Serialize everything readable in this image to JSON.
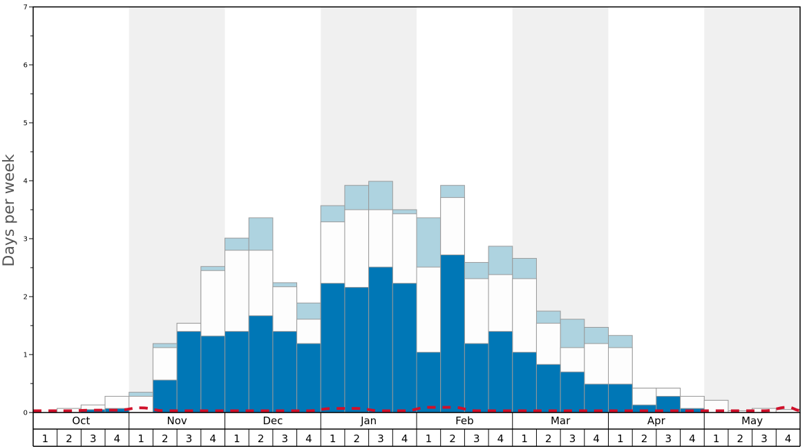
{
  "chart_data": {
    "type": "bar",
    "ylabel": "Days per week",
    "ylim": [
      0,
      7
    ],
    "yticks": [
      "0",
      "1",
      "2",
      "3",
      "4",
      "5",
      "6",
      "7"
    ],
    "months": [
      "Oct",
      "Nov",
      "Dec",
      "Jan",
      "Feb",
      "Mar",
      "Apr",
      "May"
    ],
    "weeks_per_month": [
      "1",
      "2",
      "3",
      "4"
    ],
    "colors": {
      "dark": "#0077b6",
      "white": "#fdfdfd",
      "light": "#aed3e0",
      "line": "#d0102a",
      "shade": "#f0f0f0",
      "bar_edge": "#999999"
    },
    "series": [
      {
        "color": "dark",
        "values": [
          0,
          0,
          0.05,
          0.07,
          0,
          0.56,
          1.4,
          1.32,
          1.4,
          1.67,
          1.4,
          1.19,
          2.23,
          2.16,
          2.51,
          2.23,
          1.04,
          2.72,
          1.19,
          1.4,
          1.04,
          0.83,
          0.7,
          0.49,
          0.49,
          0.13,
          0.28,
          0.07,
          0,
          0,
          0,
          0
        ]
      },
      {
        "color": "white",
        "values": [
          0,
          0.07,
          0.13,
          0.28,
          0.28,
          1.12,
          1.54,
          2.45,
          2.8,
          2.8,
          2.17,
          1.61,
          3.29,
          3.5,
          3.5,
          3.43,
          2.51,
          3.71,
          2.31,
          2.38,
          2.31,
          1.54,
          1.12,
          1.19,
          1.12,
          0.42,
          0.42,
          0.28,
          0.21,
          0.03,
          0.07,
          0.05
        ]
      },
      {
        "color": "light",
        "values": [
          0,
          0.07,
          0.13,
          0.28,
          0.35,
          1.19,
          1.54,
          2.52,
          3.01,
          3.36,
          2.24,
          1.89,
          3.57,
          3.92,
          3.99,
          3.5,
          3.36,
          3.92,
          2.59,
          2.87,
          2.66,
          1.75,
          1.61,
          1.47,
          1.33,
          0.42,
          0.42,
          0.28,
          0.21,
          0.03,
          0.07,
          0.05
        ]
      }
    ],
    "dashed_line": [
      0.03,
      0.03,
      0.04,
      0.04,
      0.08,
      0.03,
      0.03,
      0.03,
      0.03,
      0.03,
      0.03,
      0.03,
      0.07,
      0.07,
      0.03,
      0.03,
      0.09,
      0.09,
      0.03,
      0.03,
      0.03,
      0.03,
      0.03,
      0.03,
      0.03,
      0.03,
      0.03,
      0.03,
      0.03,
      0.03,
      0.03,
      0.09
    ]
  }
}
